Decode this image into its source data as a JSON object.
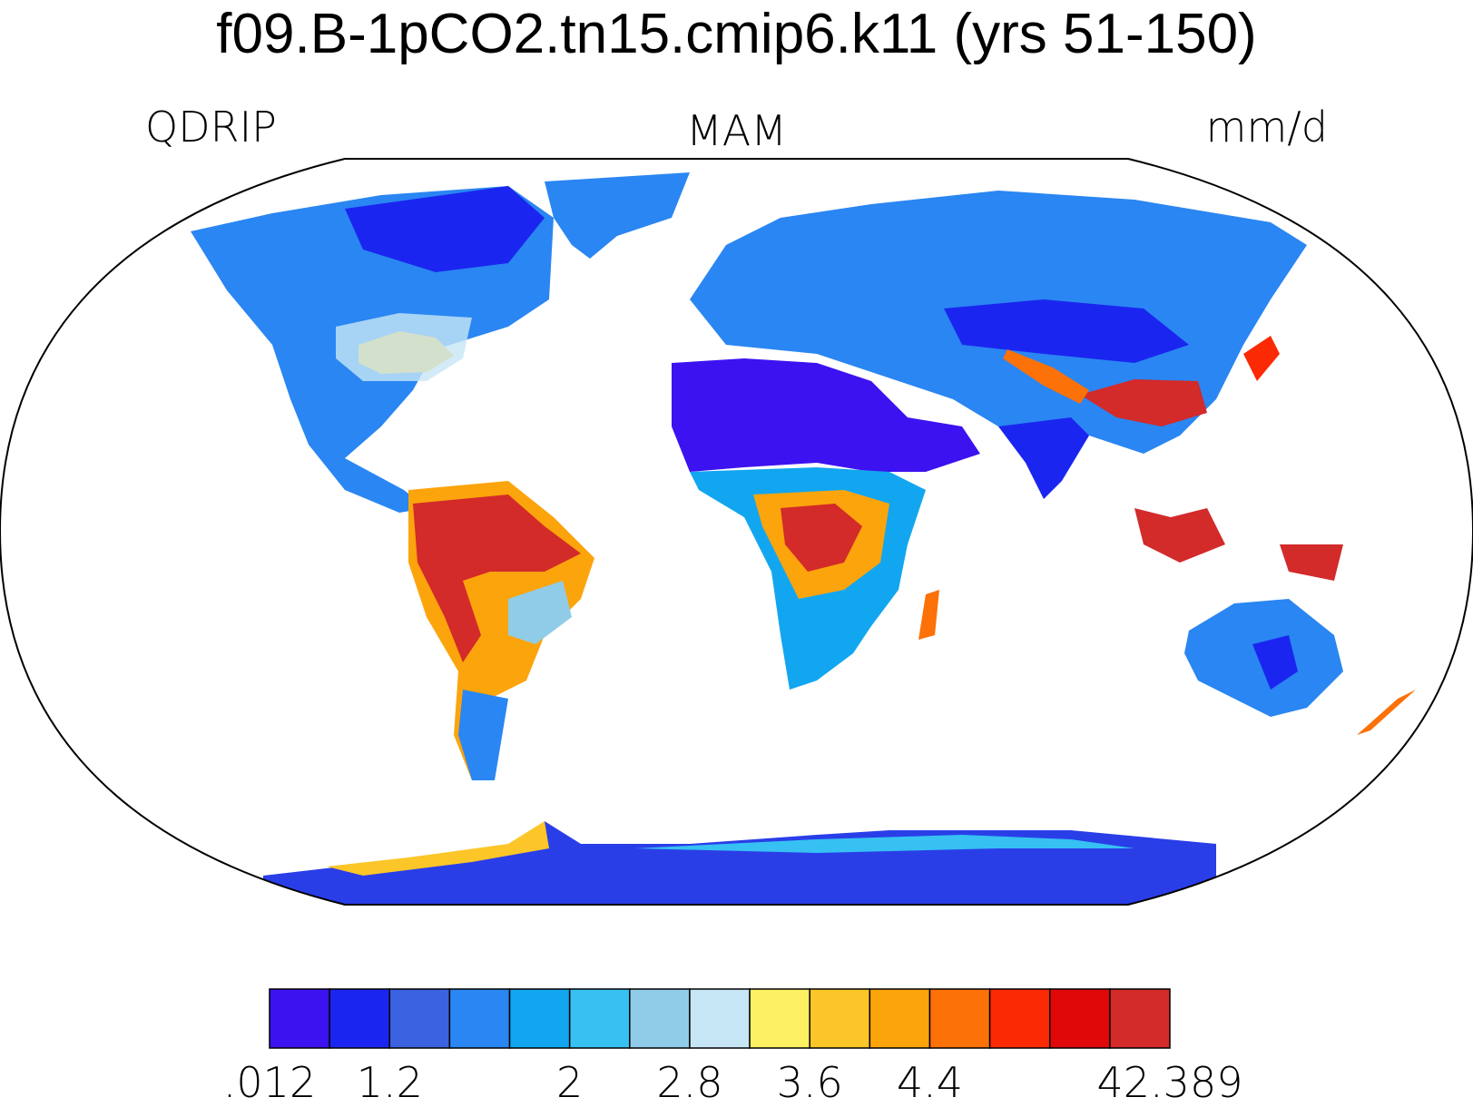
{
  "title": "f09.B-1pCO2.tn15.cmip6.k11 (yrs 51-150)",
  "variable": "QDRIP",
  "season": "MAM",
  "units": "mm/d",
  "colorbar": {
    "colors": [
      "#3d12f0",
      "#1a26ef",
      "#3b62e0",
      "#2a86f2",
      "#12a6f0",
      "#36c1f2",
      "#90cce8",
      "#c7e6f5",
      "#fdf062",
      "#fcc628",
      "#fca40c",
      "#fc7108",
      "#fc2a04",
      "#e00808",
      "#d32a2a"
    ],
    "labels": [
      {
        "text": ".012",
        "boundary": 0
      },
      {
        "text": "1.2",
        "boundary": 2
      },
      {
        "text": "2",
        "boundary": 5
      },
      {
        "text": "2.8",
        "boundary": 7
      },
      {
        "text": "3.6",
        "boundary": 9
      },
      {
        "text": "4.4",
        "boundary": 11
      },
      {
        "text": "42.389",
        "boundary": 15
      }
    ]
  }
}
